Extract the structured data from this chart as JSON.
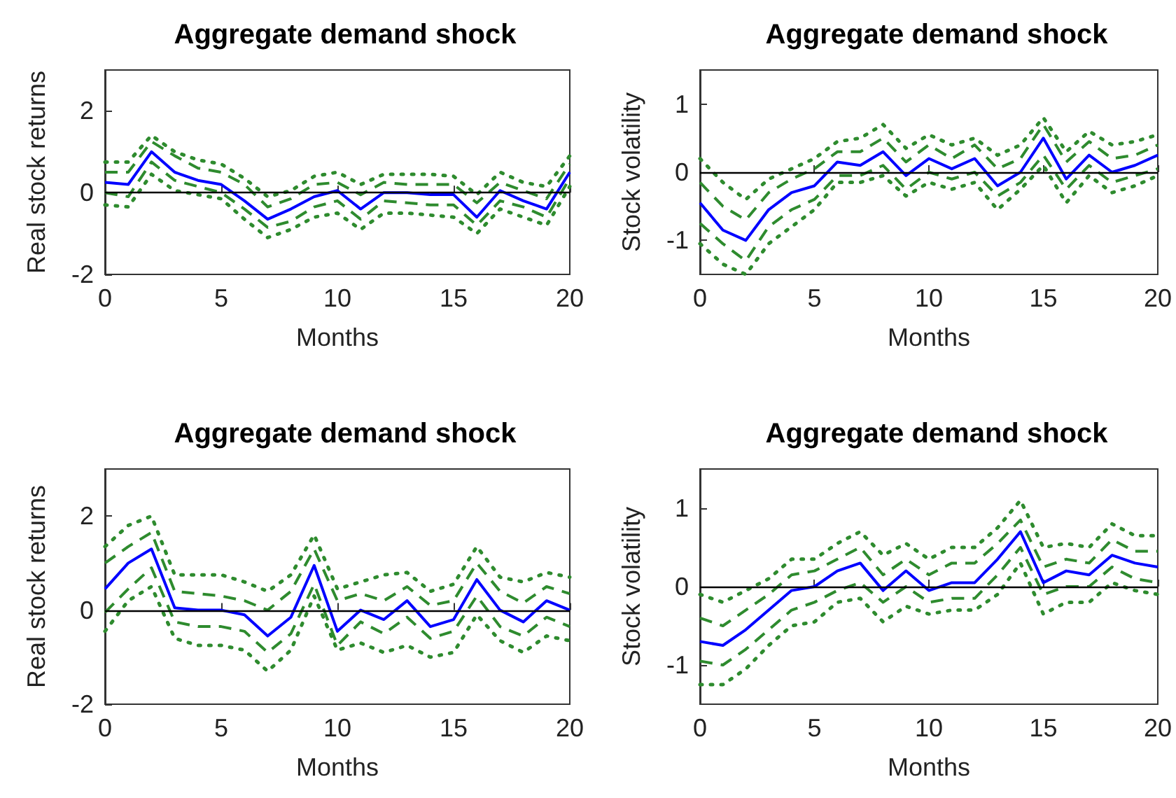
{
  "chart_data": [
    {
      "type": "line",
      "title": "Aggregate demand shock",
      "xlabel": "Months",
      "ylabel": "Real stock returns",
      "x": [
        0,
        1,
        2,
        3,
        4,
        5,
        6,
        7,
        8,
        9,
        10,
        11,
        12,
        13,
        14,
        15,
        16,
        17,
        18,
        19,
        20
      ],
      "xlim": [
        0,
        20
      ],
      "xticks": [
        0,
        5,
        10,
        15,
        20
      ],
      "ylim": [
        -2,
        3
      ],
      "yticks": [
        -2,
        0,
        2
      ],
      "grid": false,
      "marker": "none",
      "ref_lines": [
        {
          "axis": "y",
          "value": 0,
          "color": "#000000"
        }
      ],
      "series": [
        {
          "color": "#2e8b2e",
          "line_style": "dotted",
          "values": [
            0.75,
            0.75,
            1.4,
            1.0,
            0.8,
            0.7,
            0.35,
            -0.1,
            0.05,
            0.4,
            0.5,
            0.2,
            0.45,
            0.45,
            0.45,
            0.4,
            -0.05,
            0.5,
            0.25,
            0.15,
            0.9
          ]
        },
        {
          "color": "#2e8b2e",
          "line_style": "dashed",
          "values": [
            0.5,
            0.5,
            1.25,
            0.9,
            0.6,
            0.5,
            0.2,
            -0.35,
            -0.15,
            0.2,
            0.25,
            -0.05,
            0.25,
            0.2,
            0.2,
            0.2,
            -0.25,
            0.25,
            0.05,
            -0.15,
            0.7
          ]
        },
        {
          "color": "#0000ff",
          "line_style": "solid",
          "values": [
            0.25,
            0.2,
            1.0,
            0.5,
            0.3,
            0.2,
            -0.2,
            -0.65,
            -0.4,
            -0.1,
            0.05,
            -0.4,
            0,
            0,
            -0.05,
            -0.05,
            -0.6,
            0.05,
            -0.2,
            -0.4,
            0.5
          ]
        },
        {
          "color": "#2e8b2e",
          "line_style": "dashed",
          "values": [
            0,
            -0.1,
            0.75,
            0.3,
            0.15,
            0,
            -0.4,
            -0.85,
            -0.7,
            -0.35,
            -0.2,
            -0.65,
            -0.2,
            -0.25,
            -0.3,
            -0.3,
            -0.8,
            -0.2,
            -0.35,
            -0.6,
            0.35
          ]
        },
        {
          "color": "#2e8b2e",
          "line_style": "dotted",
          "values": [
            -0.3,
            -0.35,
            0.45,
            0.05,
            -0.05,
            -0.15,
            -0.65,
            -1.1,
            -0.9,
            -0.6,
            -0.5,
            -0.9,
            -0.5,
            -0.5,
            -0.55,
            -0.6,
            -1.0,
            -0.4,
            -0.6,
            -0.8,
            0.15
          ]
        }
      ]
    },
    {
      "type": "line",
      "title": "Aggregate demand shock",
      "xlabel": "Months",
      "ylabel": "Stock volatility",
      "x": [
        0,
        1,
        2,
        3,
        4,
        5,
        6,
        7,
        8,
        9,
        10,
        11,
        12,
        13,
        14,
        15,
        16,
        17,
        18,
        19,
        20
      ],
      "xlim": [
        0,
        20
      ],
      "xticks": [
        0,
        5,
        10,
        15,
        20
      ],
      "ylim": [
        -1.5,
        1.5
      ],
      "yticks": [
        -1,
        0,
        1
      ],
      "grid": false,
      "marker": "none",
      "ref_lines": [
        {
          "axis": "y",
          "value": 0,
          "color": "#000000"
        }
      ],
      "series": [
        {
          "color": "#2e8b2e",
          "line_style": "dotted",
          "values": [
            0.2,
            -0.15,
            -0.4,
            -0.1,
            0.05,
            0.2,
            0.45,
            0.5,
            0.7,
            0.35,
            0.55,
            0.4,
            0.5,
            0.25,
            0.4,
            0.8,
            0.3,
            0.6,
            0.4,
            0.45,
            0.55
          ]
        },
        {
          "color": "#2e8b2e",
          "line_style": "dashed",
          "values": [
            -0.15,
            -0.5,
            -0.7,
            -0.3,
            -0.1,
            0.05,
            0.3,
            0.3,
            0.5,
            0.15,
            0.4,
            0.2,
            0.4,
            0.05,
            0.2,
            0.7,
            0.15,
            0.45,
            0.2,
            0.25,
            0.4
          ]
        },
        {
          "color": "#0000ff",
          "line_style": "solid",
          "values": [
            -0.45,
            -0.85,
            -1.0,
            -0.55,
            -0.3,
            -0.2,
            0.15,
            0.1,
            0.3,
            -0.05,
            0.2,
            0.05,
            0.2,
            -0.2,
            0,
            0.5,
            -0.1,
            0.25,
            0,
            0.1,
            0.25
          ]
        },
        {
          "color": "#2e8b2e",
          "line_style": "dashed",
          "values": [
            -0.75,
            -1.05,
            -1.3,
            -0.8,
            -0.55,
            -0.4,
            -0.05,
            -0.05,
            0.1,
            -0.25,
            0,
            -0.1,
            0,
            -0.35,
            -0.15,
            0.25,
            -0.25,
            0.1,
            -0.15,
            -0.05,
            0.05
          ]
        },
        {
          "color": "#2e8b2e",
          "line_style": "dotted",
          "values": [
            -1.05,
            -1.35,
            -1.5,
            -1.05,
            -0.8,
            -0.55,
            -0.15,
            -0.15,
            -0.05,
            -0.35,
            -0.15,
            -0.25,
            -0.15,
            -0.55,
            -0.25,
            0.1,
            -0.45,
            -0.05,
            -0.3,
            -0.2,
            -0.05
          ]
        }
      ]
    },
    {
      "type": "line",
      "title": "Aggregate demand shock",
      "xlabel": "Months",
      "ylabel": "Real stock returns",
      "x": [
        0,
        1,
        2,
        3,
        4,
        5,
        6,
        7,
        8,
        9,
        10,
        11,
        12,
        13,
        14,
        15,
        16,
        17,
        18,
        19,
        20
      ],
      "xlim": [
        0,
        20
      ],
      "xticks": [
        0,
        5,
        10,
        15,
        20
      ],
      "ylim": [
        -2,
        3
      ],
      "yticks": [
        -2,
        0,
        2
      ],
      "grid": false,
      "marker": "none",
      "ref_lines": [
        {
          "axis": "y",
          "value": 0,
          "color": "#000000"
        }
      ],
      "series": [
        {
          "color": "#2e8b2e",
          "line_style": "dotted",
          "values": [
            1.35,
            1.8,
            2.0,
            0.75,
            0.75,
            0.75,
            0.6,
            0.4,
            0.75,
            1.6,
            0.45,
            0.6,
            0.75,
            0.8,
            0.4,
            0.55,
            1.35,
            0.7,
            0.6,
            0.8,
            0.7
          ]
        },
        {
          "color": "#2e8b2e",
          "line_style": "dashed",
          "values": [
            1.0,
            1.35,
            1.65,
            0.4,
            0.35,
            0.3,
            0.2,
            0,
            0.4,
            1.3,
            0.2,
            0.35,
            0.2,
            0.5,
            0.1,
            0.2,
            1.0,
            0.4,
            0.15,
            0.5,
            0.35
          ]
        },
        {
          "color": "#0000ff",
          "line_style": "solid",
          "values": [
            0.45,
            1.0,
            1.3,
            0.05,
            0,
            0,
            -0.1,
            -0.55,
            -0.15,
            0.95,
            -0.45,
            0,
            -0.2,
            0.2,
            -0.35,
            -0.2,
            0.65,
            0,
            -0.25,
            0.2,
            0
          ]
        },
        {
          "color": "#2e8b2e",
          "line_style": "dashed",
          "values": [
            -0.05,
            0.45,
            0.9,
            -0.25,
            -0.35,
            -0.35,
            -0.45,
            -0.9,
            -0.5,
            0.55,
            -0.75,
            -0.25,
            -0.5,
            -0.15,
            -0.6,
            -0.45,
            0.3,
            -0.35,
            -0.55,
            -0.15,
            -0.35
          ]
        },
        {
          "color": "#2e8b2e",
          "line_style": "dotted",
          "values": [
            -0.45,
            0.2,
            0.5,
            -0.6,
            -0.75,
            -0.75,
            -0.85,
            -1.3,
            -0.85,
            0.3,
            -0.85,
            -0.7,
            -0.9,
            -0.75,
            -1.0,
            -0.9,
            -0.1,
            -0.65,
            -0.9,
            -0.55,
            -0.65
          ]
        }
      ]
    },
    {
      "type": "line",
      "title": "Aggregate demand shock",
      "xlabel": "Months",
      "ylabel": "Stock volatility",
      "x": [
        0,
        1,
        2,
        3,
        4,
        5,
        6,
        7,
        8,
        9,
        10,
        11,
        12,
        13,
        14,
        15,
        16,
        17,
        18,
        19,
        20
      ],
      "xlim": [
        0,
        20
      ],
      "xticks": [
        0,
        5,
        10,
        15,
        20
      ],
      "ylim": [
        -1.5,
        1.5
      ],
      "yticks": [
        -1,
        0,
        1
      ],
      "grid": false,
      "marker": "none",
      "ref_lines": [
        {
          "axis": "y",
          "value": 0,
          "color": "#000000"
        }
      ],
      "series": [
        {
          "color": "#2e8b2e",
          "line_style": "dotted",
          "values": [
            -0.1,
            -0.2,
            -0.05,
            0.1,
            0.35,
            0.35,
            0.55,
            0.7,
            0.4,
            0.55,
            0.35,
            0.5,
            0.5,
            0.75,
            1.1,
            0.5,
            0.55,
            0.5,
            0.8,
            0.65,
            0.65
          ]
        },
        {
          "color": "#2e8b2e",
          "line_style": "dashed",
          "values": [
            -0.4,
            -0.5,
            -0.3,
            -0.1,
            0.15,
            0.2,
            0.35,
            0.5,
            0.15,
            0.35,
            0.15,
            0.3,
            0.3,
            0.55,
            0.85,
            0.25,
            0.35,
            0.3,
            0.6,
            0.45,
            0.45
          ]
        },
        {
          "color": "#0000ff",
          "line_style": "solid",
          "values": [
            -0.7,
            -0.75,
            -0.55,
            -0.3,
            -0.05,
            0,
            0.2,
            0.3,
            -0.05,
            0.2,
            -0.05,
            0.05,
            0.05,
            0.35,
            0.7,
            0.05,
            0.2,
            0.15,
            0.4,
            0.3,
            0.25
          ]
        },
        {
          "color": "#2e8b2e",
          "line_style": "dashed",
          "values": [
            -0.95,
            -1.0,
            -0.8,
            -0.55,
            -0.3,
            -0.2,
            -0.05,
            0.05,
            -0.2,
            0,
            -0.2,
            -0.15,
            -0.15,
            0.15,
            0.5,
            -0.1,
            0,
            0,
            0.25,
            0.1,
            0.05
          ]
        },
        {
          "color": "#2e8b2e",
          "line_style": "dotted",
          "values": [
            -1.25,
            -1.25,
            -1.05,
            -0.75,
            -0.5,
            -0.45,
            -0.2,
            -0.15,
            -0.45,
            -0.25,
            -0.35,
            -0.3,
            -0.3,
            -0.1,
            0.3,
            -0.35,
            -0.2,
            -0.2,
            0.05,
            -0.05,
            -0.1
          ]
        }
      ]
    }
  ]
}
